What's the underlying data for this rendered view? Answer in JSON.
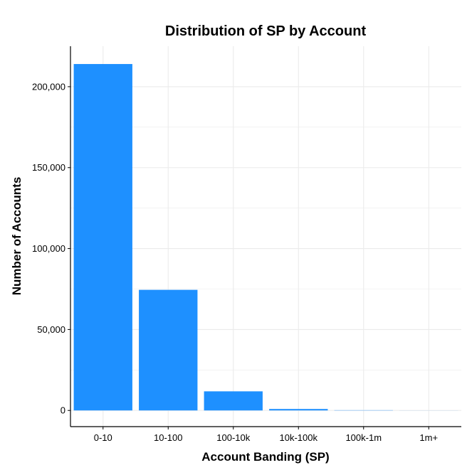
{
  "chart_data": {
    "type": "bar",
    "title": "Distribution of SP by Account",
    "xlabel": "Account Banding (SP)",
    "ylabel": "Number of Accounts",
    "categories": [
      "0-10",
      "10-100",
      "100-10k",
      "10k-100k",
      "100k-1m",
      "1m+"
    ],
    "values": [
      214000,
      74500,
      11800,
      900,
      150,
      30
    ],
    "ylim": [
      -10000,
      225000
    ],
    "yticks": [
      0,
      50000,
      100000,
      150000,
      200000
    ],
    "ytick_labels": [
      "0",
      "50,000",
      "100,000",
      "150,000",
      "200,000"
    ],
    "grid": true,
    "bar_color": "#1e90ff",
    "grid_color": "#ebebeb"
  }
}
